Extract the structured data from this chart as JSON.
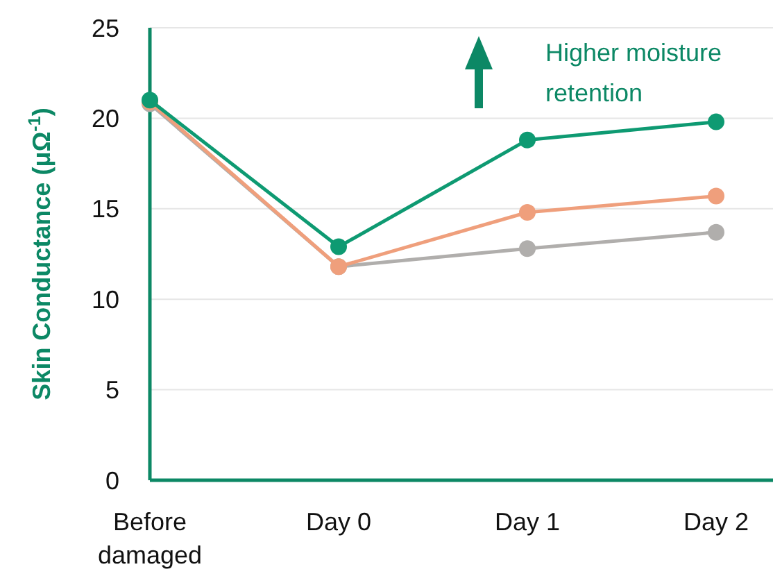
{
  "chart_data": {
    "type": "line",
    "ylabel": "Skin Conductance (μΩ$^{-1}$)",
    "categories": [
      "Before damaged",
      "Day 0",
      "Day 1",
      "Day 2"
    ],
    "series": [
      {
        "color": "#b0aeac",
        "values": [
          20.8,
          11.8,
          12.8,
          13.7
        ]
      },
      {
        "color": "#ef9f7c",
        "values": [
          20.9,
          11.8,
          14.8,
          15.7
        ]
      },
      {
        "color": "#0e9a72",
        "values": [
          21,
          12.9,
          18.8,
          19.8
        ]
      }
    ],
    "ylim": [
      0,
      25
    ],
    "yticks": [
      0,
      5,
      10,
      15,
      20,
      25
    ],
    "grid": "y",
    "marker": "circle",
    "line_style": "solid",
    "annotations": [
      "Higher moisture retention"
    ]
  }
}
